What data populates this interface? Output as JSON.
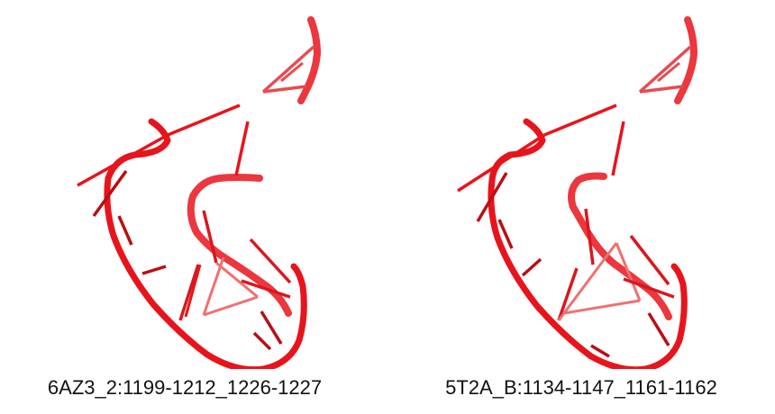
{
  "panels": [
    {
      "label": "6AZ3_2:1199-1212_1226-1227",
      "backbone_color": "#e8141b",
      "base_color": "#d8181e",
      "shade_color": "#b80f14",
      "light_color": "#f07070"
    },
    {
      "label": "5T2A_B:1134-1147_1161-1162",
      "backbone_color": "#e8141b",
      "base_color": "#d8181e",
      "shade_color": "#b80f14",
      "light_color": "#f07070"
    }
  ]
}
